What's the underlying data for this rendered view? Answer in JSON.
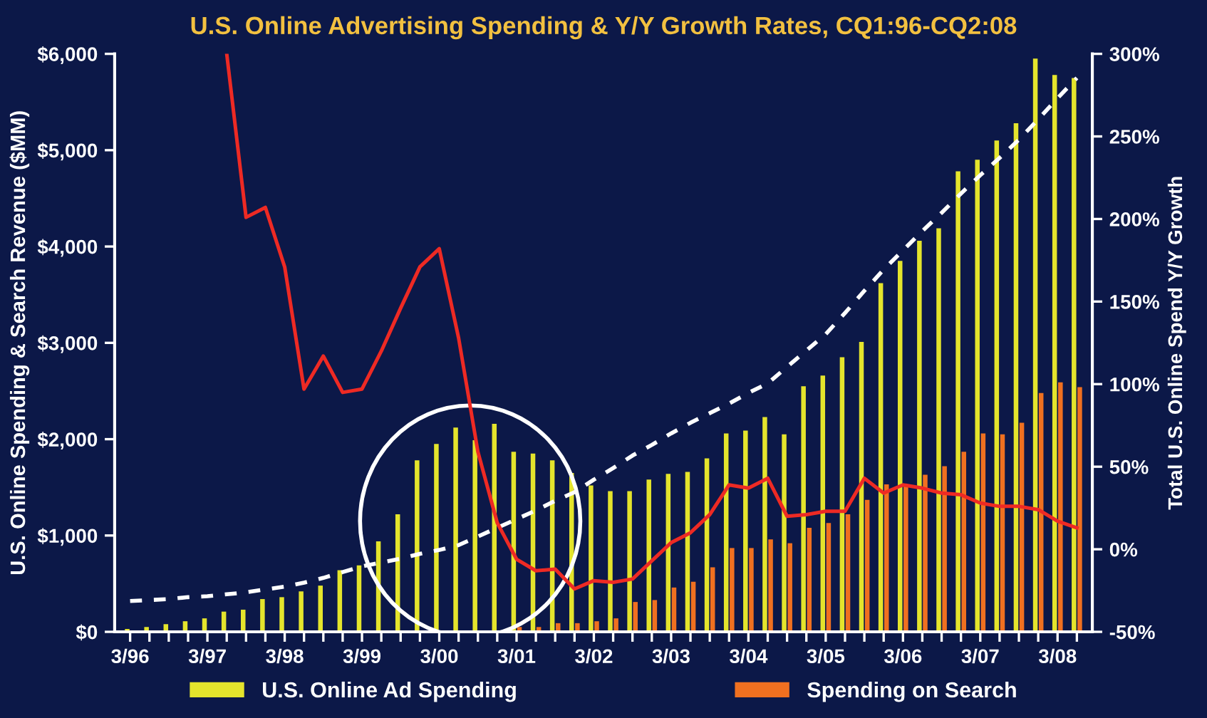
{
  "chart_data": {
    "type": "bar",
    "title": "U.S. Online Advertising Spending & Y/Y Growth Rates, CQ1:96-CQ2:08",
    "ylabel": "U.S. Online Spending & Search Revenue ($MM)",
    "y2label": "Total U.S. Online Spend Y/Y Growth",
    "categories": [
      "3/96",
      null,
      null,
      null,
      "3/97",
      null,
      null,
      null,
      "3/98",
      null,
      null,
      null,
      "3/99",
      null,
      null,
      null,
      "3/00",
      null,
      null,
      null,
      "3/01",
      null,
      null,
      null,
      "3/02",
      null,
      null,
      null,
      "3/03",
      null,
      null,
      null,
      "3/04",
      null,
      null,
      null,
      "3/05",
      null,
      null,
      null,
      "3/06",
      null,
      null,
      null,
      "3/07",
      null,
      null,
      null,
      "3/08",
      null
    ],
    "series": [
      {
        "name": "U.S. Online Ad Spending",
        "color": "#e4e42c",
        "values": [
          30,
          50,
          80,
          110,
          140,
          210,
          230,
          340,
          360,
          420,
          480,
          640,
          690,
          940,
          1220,
          1780,
          1950,
          2120,
          1990,
          2160,
          1870,
          1850,
          1780,
          1650,
          1520,
          1460,
          1460,
          1580,
          1640,
          1660,
          1800,
          2060,
          2090,
          2230,
          2050,
          2550,
          2660,
          2850,
          3010,
          3620,
          3850,
          4060,
          4190,
          4780,
          4900,
          5100,
          5280,
          5950,
          5780,
          5750
        ]
      },
      {
        "name": "Spending on Search",
        "color": "#f07020",
        "values": [
          null,
          null,
          null,
          null,
          null,
          null,
          null,
          null,
          null,
          null,
          null,
          null,
          null,
          null,
          null,
          null,
          null,
          null,
          null,
          null,
          50,
          50,
          90,
          90,
          110,
          140,
          310,
          330,
          460,
          520,
          670,
          870,
          870,
          960,
          920,
          1080,
          1130,
          1220,
          1370,
          1530,
          1530,
          1630,
          1720,
          1870,
          2060,
          2050,
          2170,
          2480,
          2590,
          2540
        ]
      },
      {
        "type": "line",
        "axis": "y2",
        "color": "#ee2a24",
        "line_style": "solid",
        "values": [
          null,
          null,
          null,
          null,
          null,
          300,
          201,
          207,
          171,
          97,
          117,
          95,
          97,
          120,
          146,
          171,
          182,
          128,
          59,
          16,
          -6,
          -13,
          -12,
          -24,
          -19,
          -20,
          -18,
          -7,
          4,
          10,
          21,
          39,
          37,
          43,
          20,
          21,
          23,
          23,
          43,
          34,
          39,
          37,
          34,
          33,
          28,
          26,
          26,
          24,
          17,
          13
        ]
      },
      {
        "type": "line",
        "color": "#ffffff",
        "line_style": "dashed",
        "values": [
          320,
          330,
          340,
          360,
          370,
          390,
          410,
          440,
          470,
          510,
          560,
          620,
          680,
          720,
          760,
          810,
          850,
          900,
          990,
          1080,
          1170,
          1260,
          1360,
          1450,
          1580,
          1700,
          1830,
          1940,
          2060,
          2170,
          2270,
          2370,
          2480,
          2580,
          2750,
          2920,
          3090,
          3310,
          3540,
          3760,
          3960,
          4160,
          4350,
          4550,
          4740,
          4920,
          5110,
          5320,
          5540,
          5750
        ]
      }
    ],
    "ylim": [
      0,
      6000
    ],
    "yticks": [
      {
        "value": 0,
        "label": "$0"
      },
      {
        "value": 1000,
        "label": "$1,000"
      },
      {
        "value": 2000,
        "label": "$2,000"
      },
      {
        "value": 3000,
        "label": "$3,000"
      },
      {
        "value": 4000,
        "label": "$4,000"
      },
      {
        "value": 5000,
        "label": "$5,000"
      },
      {
        "value": 6000,
        "label": "$6,000"
      }
    ],
    "y2lim": [
      -50,
      300
    ],
    "y2ticks": [
      {
        "value": -50,
        "label": "-50%"
      },
      {
        "value": 0,
        "label": "0%"
      },
      {
        "value": 50,
        "label": "50%"
      },
      {
        "value": 100,
        "label": "100%"
      },
      {
        "value": 150,
        "label": "150%"
      },
      {
        "value": 200,
        "label": "200%"
      },
      {
        "value": 250,
        "label": "250%"
      },
      {
        "value": 300,
        "label": "300%"
      }
    ],
    "grid": false,
    "legend": "bottom"
  }
}
